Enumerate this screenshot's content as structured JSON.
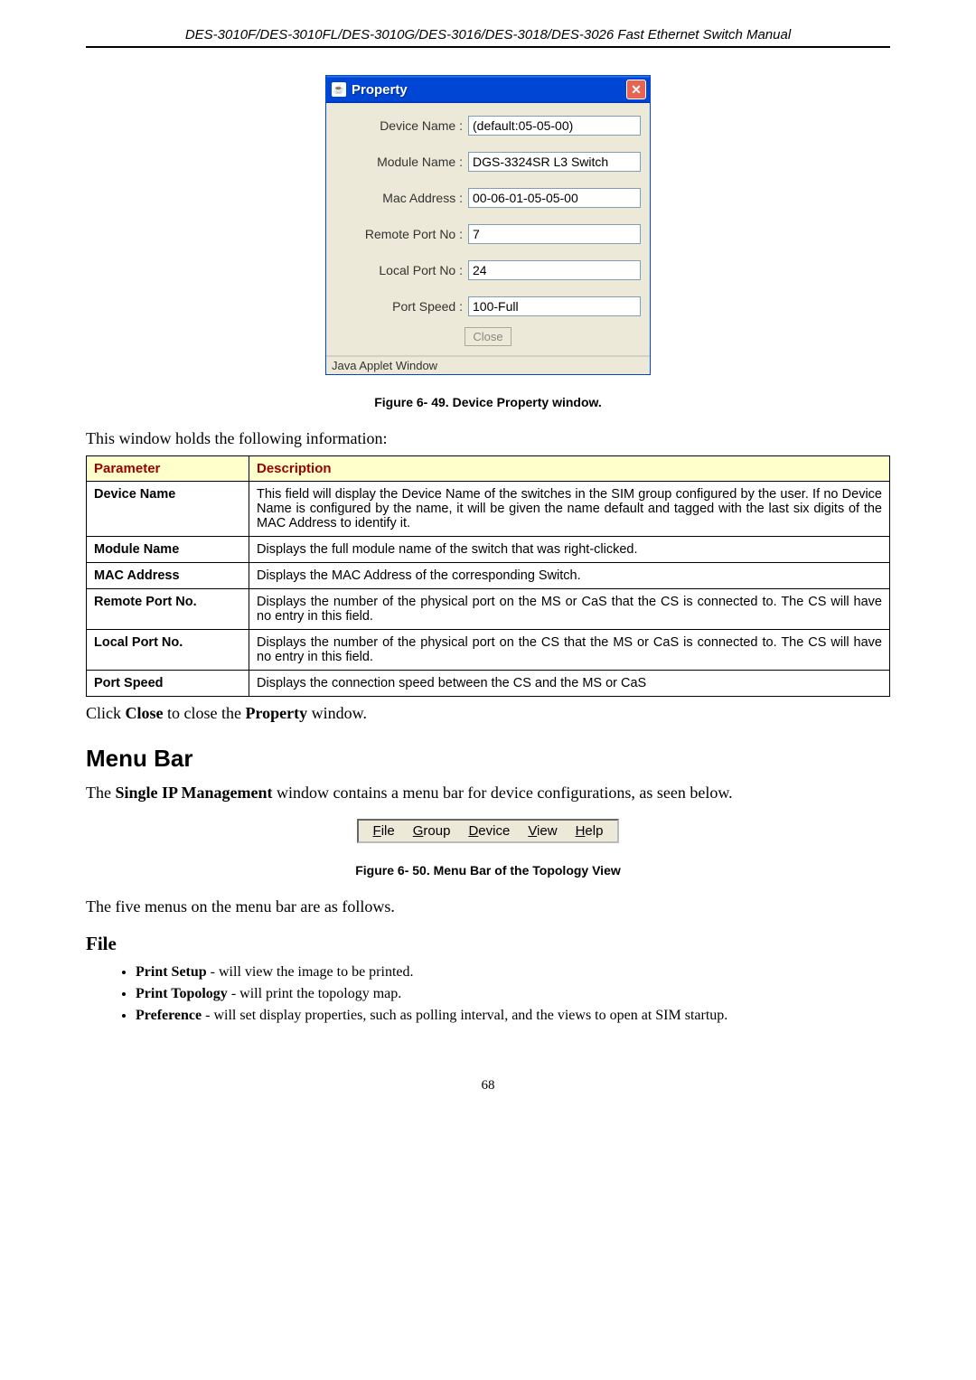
{
  "header": "DES-3010F/DES-3010FL/DES-3010G/DES-3016/DES-3018/DES-3026 Fast Ethernet Switch Manual",
  "dialog": {
    "title": "Property",
    "fields": [
      {
        "label": "Device Name :",
        "value": "(default:05-05-00)"
      },
      {
        "label": "Module Name :",
        "value": "DGS-3324SR L3 Switch"
      },
      {
        "label": "Mac Address :",
        "value": "00-06-01-05-05-00"
      },
      {
        "label": "Remote Port No :",
        "value": "7"
      },
      {
        "label": "Local Port No :",
        "value": "24"
      },
      {
        "label": "Port Speed :",
        "value": "100-Full"
      }
    ],
    "close_btn": "Close",
    "status": "Java Applet Window"
  },
  "figcap1": "Figure 6- 49. Device Property window.",
  "intro1": "This window holds the following information:",
  "table": {
    "h1": "Parameter",
    "h2": "Description",
    "rows": [
      {
        "p": "Device Name",
        "d": "This field will display the Device Name of the switches in the SIM group configured by the user. If no Device Name is configured by the name, it will be given the name default and tagged with the last six digits of the MAC Address to identify it."
      },
      {
        "p": "Module Name",
        "d": "Displays the full module name of the switch that was right-clicked."
      },
      {
        "p": "MAC Address",
        "d": "Displays the MAC Address of the corresponding Switch."
      },
      {
        "p": "Remote Port No.",
        "d": "Displays the number of the physical port on the MS or CaS that the CS is connected to. The CS will have no entry in this field."
      },
      {
        "p": "Local Port No.",
        "d": "Displays the number of the physical port on the CS that the MS or CaS is connected to. The CS will have no entry in this field."
      },
      {
        "p": "Port Speed",
        "d": "Displays the connection speed between the CS and the MS or CaS"
      }
    ]
  },
  "close_text_pre": "Click ",
  "close_text_bold1": "Close",
  "close_text_mid": " to close the ",
  "close_text_bold2": "Property",
  "close_text_post": " window.",
  "h2_menu": "Menu Bar",
  "menu_intro_pre": "The ",
  "menu_intro_bold": "Single IP Management",
  "menu_intro_post": " window contains a menu bar for device configurations, as seen below.",
  "menubar": {
    "file": "File",
    "group": "Group",
    "device": "Device",
    "view": "View",
    "help": "Help"
  },
  "figcap2": "Figure 6- 50. Menu Bar of the Topology View",
  "five_menus": "The five menus on the menu bar are as follows.",
  "h3_file": "File",
  "bullets": [
    {
      "b": "Print Setup",
      "t": " - will view the image to be printed."
    },
    {
      "b": "Print Topology",
      "t": " - will print the topology map."
    },
    {
      "b": "Preference",
      "t": " - will set display properties, such as polling interval, and the views to open at SIM startup."
    }
  ],
  "page_num": "68"
}
